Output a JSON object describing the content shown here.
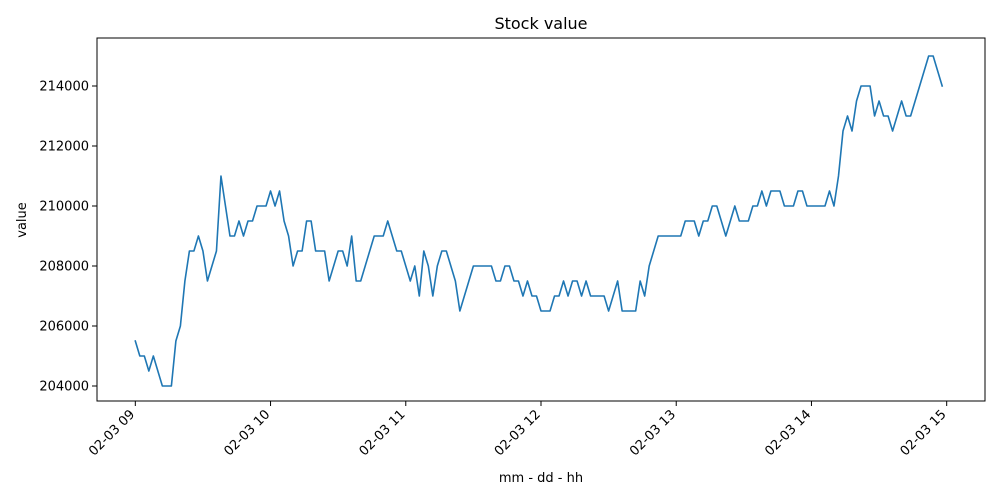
{
  "chart_data": {
    "type": "line",
    "title": "Stock value",
    "xlabel": "mm - dd - hh",
    "ylabel": "value",
    "xlim": [
      "02-03 08:43",
      "02-03 15:17"
    ],
    "ylim": [
      203500,
      215600
    ],
    "yticks": [
      204000,
      206000,
      208000,
      210000,
      212000,
      214000
    ],
    "xticks": [
      {
        "hour": 9,
        "label": "02-03 09"
      },
      {
        "hour": 10,
        "label": "02-03 10"
      },
      {
        "hour": 11,
        "label": "02-03 11"
      },
      {
        "hour": 12,
        "label": "02-03 12"
      },
      {
        "hour": 13,
        "label": "02-03 13"
      },
      {
        "hour": 14,
        "label": "02-03 14"
      },
      {
        "hour": 15,
        "label": "02-03 15"
      }
    ],
    "grid": false,
    "color": "#1f77b4",
    "series": [
      {
        "x": [
          "09:00",
          "09:02",
          "09:04",
          "09:06",
          "09:08",
          "09:10",
          "09:12",
          "09:14",
          "09:16",
          "09:18",
          "09:20",
          "09:22",
          "09:24",
          "09:26",
          "09:28",
          "09:30",
          "09:32",
          "09:34",
          "09:36",
          "09:38",
          "09:40",
          "09:42",
          "09:44",
          "09:46",
          "09:48",
          "09:50",
          "09:52",
          "09:54",
          "09:56",
          "09:58",
          "10:00",
          "10:02",
          "10:04",
          "10:06",
          "10:08",
          "10:10",
          "10:12",
          "10:14",
          "10:16",
          "10:18",
          "10:20",
          "10:22",
          "10:24",
          "10:26",
          "10:28",
          "10:30",
          "10:32",
          "10:34",
          "10:36",
          "10:38",
          "10:40",
          "10:42",
          "10:44",
          "10:46",
          "10:48",
          "10:50",
          "10:52",
          "10:54",
          "10:56",
          "10:58",
          "11:00",
          "11:02",
          "11:04",
          "11:06",
          "11:08",
          "11:10",
          "11:12",
          "11:14",
          "11:16",
          "11:18",
          "11:20",
          "11:22",
          "11:24",
          "11:26",
          "11:28",
          "11:30",
          "11:32",
          "11:34",
          "11:36",
          "11:38",
          "11:40",
          "11:42",
          "11:44",
          "11:46",
          "11:48",
          "11:50",
          "11:52",
          "11:54",
          "11:56",
          "11:58",
          "12:00",
          "12:02",
          "12:04",
          "12:06",
          "12:08",
          "12:10",
          "12:12",
          "12:14",
          "12:16",
          "12:18",
          "12:20",
          "12:22",
          "12:24",
          "12:26",
          "12:28",
          "12:30",
          "12:32",
          "12:34",
          "12:36",
          "12:38",
          "12:40",
          "12:42",
          "12:44",
          "12:46",
          "12:48",
          "12:50",
          "12:52",
          "12:54",
          "12:56",
          "12:58",
          "13:00",
          "13:02",
          "13:04",
          "13:06",
          "13:08",
          "13:10",
          "13:12",
          "13:14",
          "13:16",
          "13:18",
          "13:20",
          "13:22",
          "13:24",
          "13:26",
          "13:28",
          "13:30",
          "13:32",
          "13:34",
          "13:36",
          "13:38",
          "13:40",
          "13:42",
          "13:44",
          "13:46",
          "13:48",
          "13:50",
          "13:52",
          "13:54",
          "13:56",
          "13:58",
          "14:00",
          "14:02",
          "14:04",
          "14:06",
          "14:08",
          "14:10",
          "14:12",
          "14:14",
          "14:16",
          "14:18",
          "14:20",
          "14:22",
          "14:24",
          "14:26",
          "14:28",
          "14:30",
          "14:32",
          "14:34",
          "14:36",
          "14:38",
          "14:40",
          "14:42",
          "14:44",
          "14:46",
          "14:48",
          "14:50",
          "14:52",
          "14:54",
          "14:56",
          "14:58"
        ],
        "y": [
          205500,
          205000,
          205000,
          204500,
          205000,
          204500,
          204000,
          204000,
          204000,
          205500,
          206000,
          207500,
          208500,
          208500,
          209000,
          208500,
          207500,
          208000,
          208500,
          211000,
          210000,
          209000,
          209000,
          209500,
          209000,
          209500,
          209500,
          210000,
          210000,
          210000,
          210500,
          210000,
          210500,
          209500,
          209000,
          208000,
          208500,
          208500,
          209500,
          209500,
          208500,
          208500,
          208500,
          207500,
          208000,
          208500,
          208500,
          208000,
          209000,
          207500,
          207500,
          208000,
          208500,
          209000,
          209000,
          209000,
          209500,
          209000,
          208500,
          208500,
          208000,
          207500,
          208000,
          207000,
          208500,
          208000,
          207000,
          208000,
          208500,
          208500,
          208000,
          207500,
          206500,
          207000,
          207500,
          208000,
          208000,
          208000,
          208000,
          208000,
          207500,
          207500,
          208000,
          208000,
          207500,
          207500,
          207000,
          207500,
          207000,
          207000,
          206500,
          206500,
          206500,
          207000,
          207000,
          207500,
          207000,
          207500,
          207500,
          207000,
          207500,
          207000,
          207000,
          207000,
          207000,
          206500,
          207000,
          207500,
          206500,
          206500,
          206500,
          206500,
          207500,
          207000,
          208000,
          208500,
          209000,
          209000,
          209000,
          209000,
          209000,
          209000,
          209500,
          209500,
          209500,
          209000,
          209500,
          209500,
          210000,
          210000,
          209500,
          209000,
          209500,
          210000,
          209500,
          209500,
          209500,
          210000,
          210000,
          210500,
          210000,
          210500,
          210500,
          210500,
          210000,
          210000,
          210000,
          210500,
          210500,
          210000,
          210000,
          210000,
          210000,
          210000,
          210500,
          210000,
          211000,
          212500,
          213000,
          212500,
          213500,
          214000,
          214000,
          214000,
          213000,
          213500,
          213000,
          213000,
          212500,
          213000,
          213500,
          213000,
          213000,
          213500,
          214000,
          214500,
          215000,
          215000,
          214500,
          214000
        ]
      }
    ]
  }
}
